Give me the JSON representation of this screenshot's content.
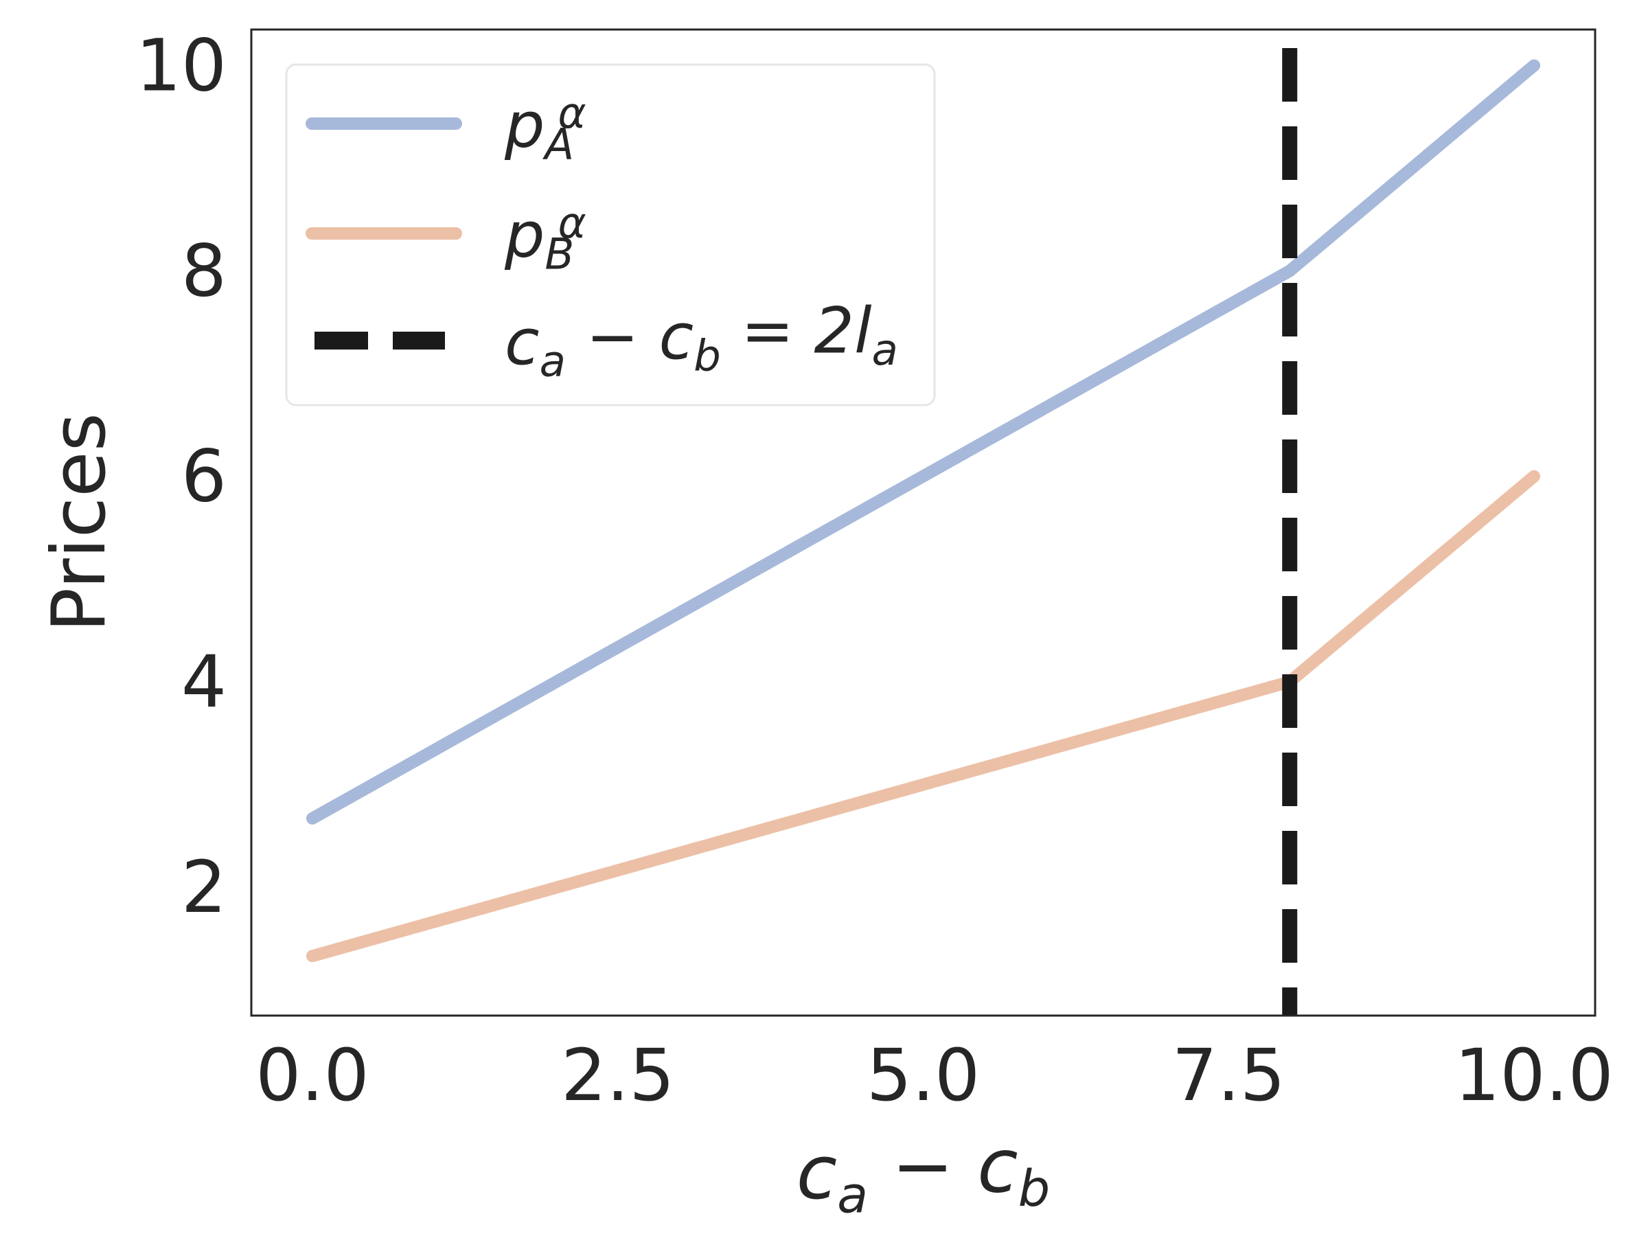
{
  "chart_data": {
    "type": "line",
    "xlabel": "c_a − c_b",
    "ylabel": "Prices",
    "xlim": [
      -0.5,
      10.5
    ],
    "ylim": [
      0.75,
      10.35
    ],
    "xticks": [
      "0.0",
      "2.5",
      "5.0",
      "7.5",
      "10.0"
    ],
    "yticks": [
      "2",
      "4",
      "6",
      "8",
      "10"
    ],
    "grid": false,
    "legend_position": "upper-left",
    "series": [
      {
        "name": "p_A^α",
        "color": "#a7b9da",
        "x": [
          0,
          8,
          10
        ],
        "y": [
          2.67,
          8.0,
          10.0
        ]
      },
      {
        "name": "p_B^α",
        "color": "#ecc0a6",
        "x": [
          0,
          8,
          10
        ],
        "y": [
          1.33,
          4.0,
          6.0
        ]
      }
    ],
    "vline": {
      "label": "c_a − c_b = 2l_a",
      "x": 8,
      "color": "#1a1a1a",
      "style": "dashed"
    }
  }
}
